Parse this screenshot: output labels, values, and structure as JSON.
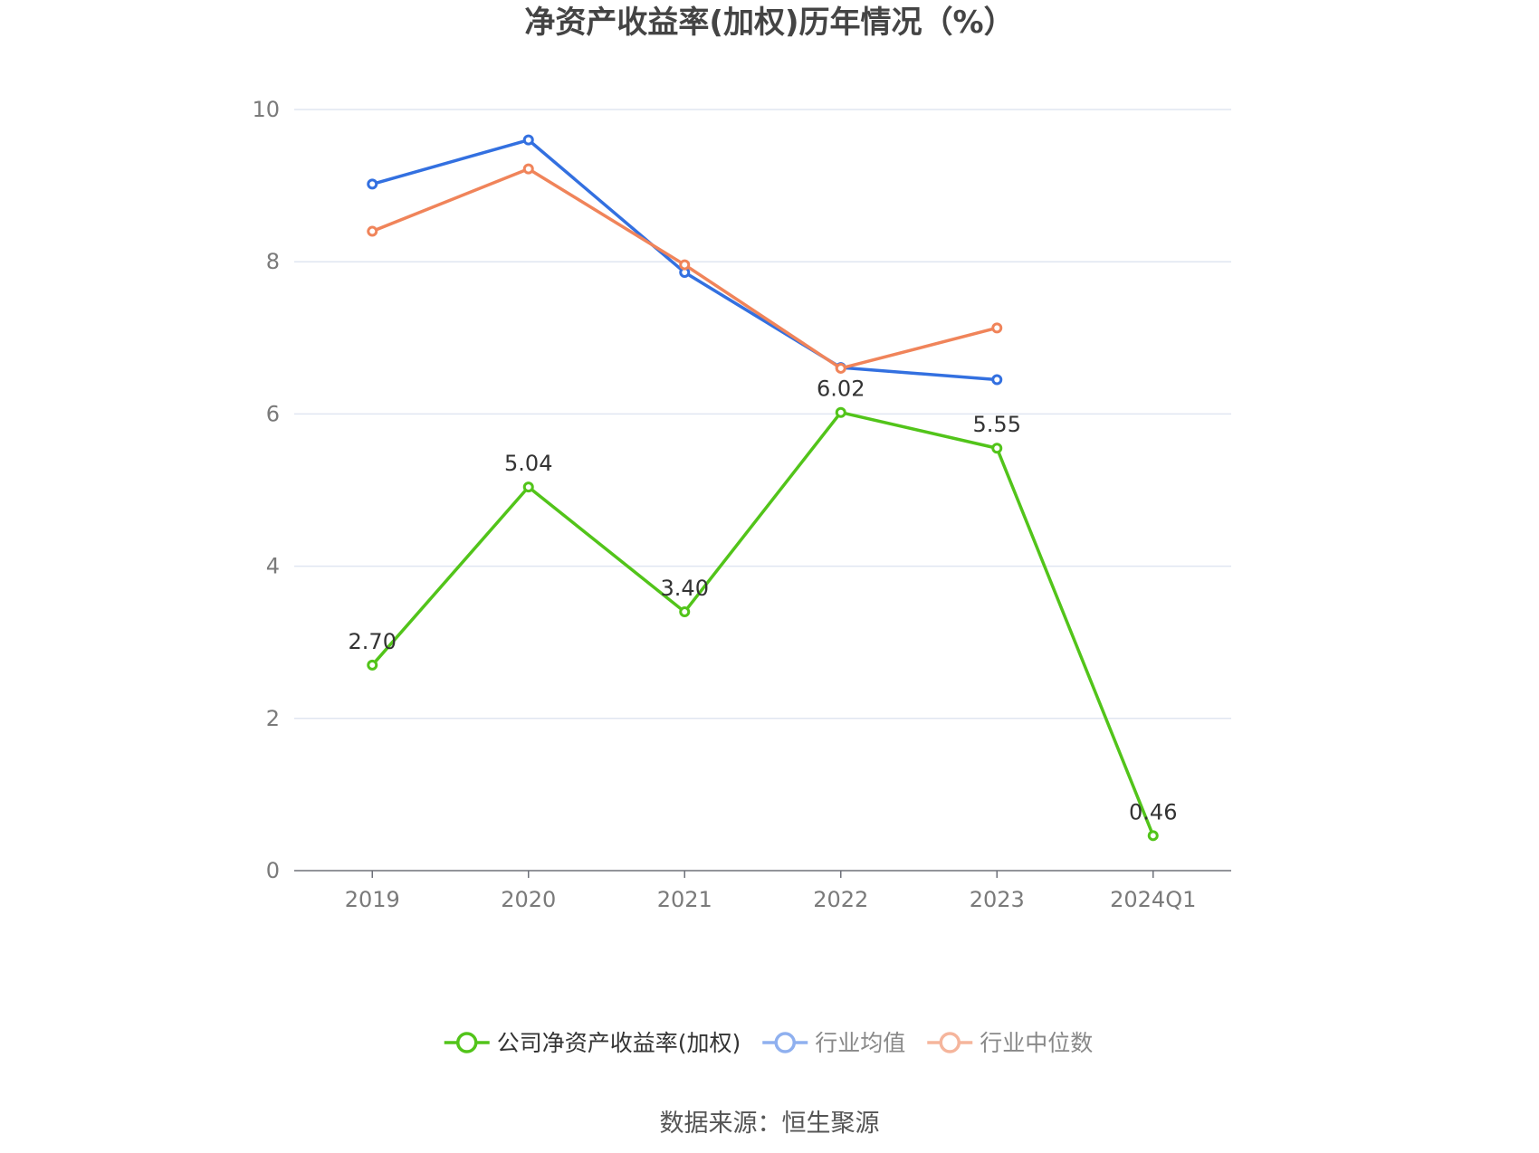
{
  "chart_data": {
    "type": "line",
    "title": "净资产收益率(加权)历年情况（%）",
    "categories": [
      "2019",
      "2020",
      "2021",
      "2022",
      "2023",
      "2024Q1"
    ],
    "ylim": [
      0,
      10
    ],
    "yticks": [
      0,
      2,
      4,
      6,
      8,
      10
    ],
    "grid": true,
    "legend_position": "bottom",
    "series": [
      {
        "name": "公司净资产收益率(加权)",
        "color": "#52c41a",
        "values": [
          2.7,
          5.04,
          3.4,
          6.02,
          5.55,
          0.46
        ],
        "labels": [
          "2.70",
          "5.04",
          "3.40",
          "6.02",
          "5.55",
          "0.46"
        ],
        "legend_active": true
      },
      {
        "name": "行业均值",
        "color": "#3370e0",
        "legend_color": "#8fb0ef",
        "values": [
          9.02,
          9.6,
          7.86,
          6.61,
          6.45,
          null
        ],
        "legend_active": false
      },
      {
        "name": "行业中位数",
        "color": "#f0845a",
        "legend_color": "#f5b59c",
        "values": [
          8.4,
          9.22,
          7.96,
          6.6,
          7.13,
          null
        ],
        "legend_active": false
      }
    ],
    "source": "数据来源：恒生聚源"
  }
}
